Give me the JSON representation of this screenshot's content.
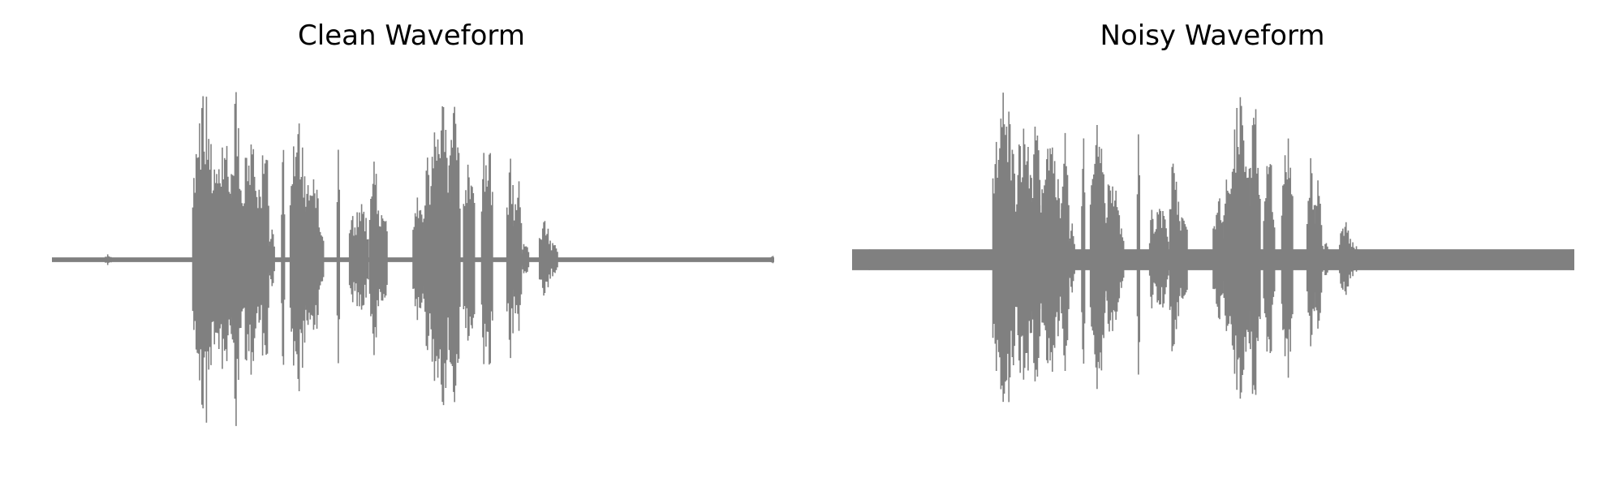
{
  "figure": {
    "panels": [
      {
        "title": "Clean Waveform"
      },
      {
        "title": "Noisy Waveform"
      }
    ]
  },
  "chart_data": [
    {
      "type": "line",
      "title": "Clean Waveform",
      "xlabel": "",
      "ylabel": "",
      "axes_visible": false,
      "grid": false,
      "color": "#808080",
      "xlim": [
        0,
        1
      ],
      "ylim": [
        -1,
        1
      ],
      "noise_floor": 0.012,
      "segments": [
        {
          "x0": 0.0,
          "x1": 1.0,
          "amp": 0.01
        },
        {
          "x0": 0.074,
          "x1": 0.082,
          "amp": 0.03
        },
        {
          "x0": 0.195,
          "x1": 0.225,
          "amp": 0.9
        },
        {
          "x0": 0.225,
          "x1": 0.25,
          "amp": 0.72
        },
        {
          "x0": 0.25,
          "x1": 0.26,
          "amp": 0.98
        },
        {
          "x0": 0.26,
          "x1": 0.29,
          "amp": 0.62
        },
        {
          "x0": 0.29,
          "x1": 0.3,
          "amp": 0.78
        },
        {
          "x0": 0.3,
          "x1": 0.308,
          "amp": 0.2
        },
        {
          "x0": 0.318,
          "x1": 0.322,
          "amp": 0.7
        },
        {
          "x0": 0.33,
          "x1": 0.35,
          "amp": 0.82
        },
        {
          "x0": 0.35,
          "x1": 0.37,
          "amp": 0.5
        },
        {
          "x0": 0.37,
          "x1": 0.376,
          "amp": 0.2
        },
        {
          "x0": 0.395,
          "x1": 0.398,
          "amp": 1.0
        },
        {
          "x0": 0.412,
          "x1": 0.418,
          "amp": 0.28
        },
        {
          "x0": 0.418,
          "x1": 0.438,
          "amp": 0.3
        },
        {
          "x0": 0.44,
          "x1": 0.452,
          "amp": 0.57
        },
        {
          "x0": 0.452,
          "x1": 0.464,
          "amp": 0.3
        },
        {
          "x0": 0.5,
          "x1": 0.515,
          "amp": 0.35
        },
        {
          "x0": 0.515,
          "x1": 0.525,
          "amp": 0.6
        },
        {
          "x0": 0.525,
          "x1": 0.55,
          "amp": 0.92
        },
        {
          "x0": 0.55,
          "x1": 0.565,
          "amp": 0.85
        },
        {
          "x0": 0.57,
          "x1": 0.585,
          "amp": 0.55
        },
        {
          "x0": 0.595,
          "x1": 0.61,
          "amp": 0.7
        },
        {
          "x0": 0.63,
          "x1": 0.64,
          "amp": 0.55
        },
        {
          "x0": 0.64,
          "x1": 0.65,
          "amp": 0.45
        },
        {
          "x0": 0.65,
          "x1": 0.66,
          "amp": 0.1
        },
        {
          "x0": 0.675,
          "x1": 0.69,
          "amp": 0.22
        },
        {
          "x0": 0.69,
          "x1": 0.7,
          "amp": 0.1
        },
        {
          "x0": 0.995,
          "x1": 1.0,
          "amp": 0.03
        }
      ]
    },
    {
      "type": "line",
      "title": "Noisy Waveform",
      "xlabel": "",
      "ylabel": "",
      "axes_visible": false,
      "grid": false,
      "color": "#808080",
      "xlim": [
        0,
        1
      ],
      "ylim": [
        -1,
        1
      ],
      "noise_floor": 0.055,
      "segments": [
        {
          "x0": 0.0,
          "x1": 0.024,
          "amp": 0.01
        },
        {
          "x0": 0.024,
          "x1": 1.0,
          "amp": 0.05
        },
        {
          "x0": 0.195,
          "x1": 0.225,
          "amp": 0.9
        },
        {
          "x0": 0.225,
          "x1": 0.25,
          "amp": 0.72
        },
        {
          "x0": 0.25,
          "x1": 0.26,
          "amp": 0.98
        },
        {
          "x0": 0.26,
          "x1": 0.29,
          "amp": 0.62
        },
        {
          "x0": 0.29,
          "x1": 0.3,
          "amp": 0.78
        },
        {
          "x0": 0.3,
          "x1": 0.308,
          "amp": 0.2
        },
        {
          "x0": 0.318,
          "x1": 0.322,
          "amp": 0.7
        },
        {
          "x0": 0.33,
          "x1": 0.35,
          "amp": 0.82
        },
        {
          "x0": 0.35,
          "x1": 0.37,
          "amp": 0.5
        },
        {
          "x0": 0.37,
          "x1": 0.376,
          "amp": 0.2
        },
        {
          "x0": 0.395,
          "x1": 0.398,
          "amp": 1.0
        },
        {
          "x0": 0.412,
          "x1": 0.418,
          "amp": 0.28
        },
        {
          "x0": 0.418,
          "x1": 0.438,
          "amp": 0.3
        },
        {
          "x0": 0.44,
          "x1": 0.452,
          "amp": 0.57
        },
        {
          "x0": 0.452,
          "x1": 0.464,
          "amp": 0.3
        },
        {
          "x0": 0.5,
          "x1": 0.515,
          "amp": 0.35
        },
        {
          "x0": 0.515,
          "x1": 0.525,
          "amp": 0.6
        },
        {
          "x0": 0.525,
          "x1": 0.55,
          "amp": 0.92
        },
        {
          "x0": 0.55,
          "x1": 0.565,
          "amp": 0.85
        },
        {
          "x0": 0.57,
          "x1": 0.585,
          "amp": 0.55
        },
        {
          "x0": 0.595,
          "x1": 0.61,
          "amp": 0.7
        },
        {
          "x0": 0.63,
          "x1": 0.64,
          "amp": 0.55
        },
        {
          "x0": 0.64,
          "x1": 0.65,
          "amp": 0.45
        },
        {
          "x0": 0.65,
          "x1": 0.66,
          "amp": 0.1
        },
        {
          "x0": 0.675,
          "x1": 0.69,
          "amp": 0.22
        },
        {
          "x0": 0.69,
          "x1": 0.7,
          "amp": 0.1
        },
        {
          "x0": 0.995,
          "x1": 1.0,
          "amp": 0.07
        }
      ]
    }
  ]
}
